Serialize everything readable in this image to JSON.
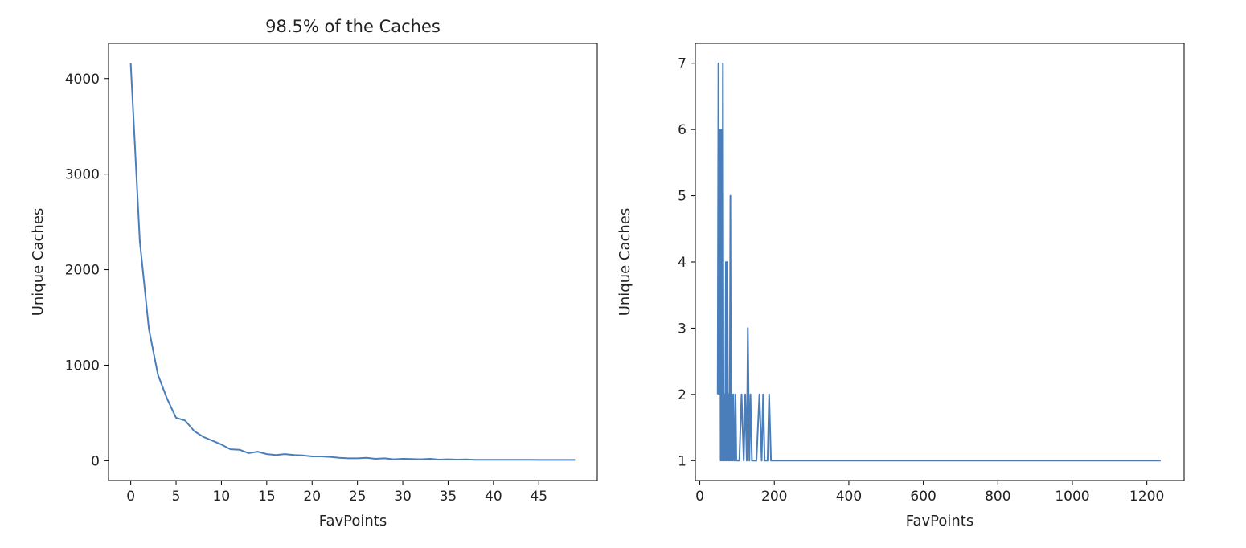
{
  "chart_data": [
    {
      "type": "line",
      "title": "98.5% of the Caches",
      "xlabel": "FavPoints",
      "ylabel": "Unique Caches",
      "xlim": [
        -2.45,
        51.45
      ],
      "ylim": [
        -207,
        4368
      ],
      "xticks": [
        0,
        5,
        10,
        15,
        20,
        25,
        30,
        35,
        40,
        45
      ],
      "yticks": [
        0,
        1000,
        2000,
        3000,
        4000
      ],
      "grid": false,
      "color": "#4a7ebb",
      "series": [
        {
          "x": [
            0,
            1,
            2,
            3,
            4,
            5,
            6,
            7,
            8,
            9,
            10,
            11,
            12,
            13,
            14,
            15,
            16,
            17,
            18,
            19,
            20,
            21,
            22,
            23,
            24,
            25,
            26,
            27,
            28,
            29,
            30,
            31,
            32,
            33,
            34,
            35,
            36,
            37,
            38,
            39,
            40,
            41,
            42,
            43,
            44,
            45,
            46,
            47,
            48,
            49
          ],
          "values": [
            4160,
            2300,
            1380,
            900,
            650,
            450,
            420,
            310,
            250,
            210,
            170,
            120,
            115,
            80,
            95,
            70,
            60,
            70,
            60,
            55,
            45,
            45,
            40,
            30,
            25,
            25,
            30,
            20,
            25,
            15,
            20,
            18,
            15,
            20,
            12,
            15,
            12,
            14,
            10,
            10,
            10,
            10,
            10,
            10,
            10,
            8,
            8,
            8,
            8,
            8
          ]
        }
      ]
    },
    {
      "type": "line",
      "title": "",
      "xlabel": "FavPoints",
      "ylabel": "Unique Caches",
      "xlim": [
        -12,
        1300
      ],
      "ylim": [
        0.7,
        7.3
      ],
      "xticks": [
        0,
        200,
        400,
        600,
        800,
        1000,
        1200
      ],
      "yticks": [
        1,
        2,
        3,
        4,
        5,
        6,
        7
      ],
      "grid": false,
      "color": "#4a7ebb",
      "series": [
        {
          "x": [
            48,
            50,
            52,
            54,
            56,
            58,
            60,
            62,
            64,
            66,
            68,
            70,
            72,
            74,
            76,
            78,
            80,
            82,
            84,
            86,
            88,
            90,
            92,
            94,
            96,
            98,
            100,
            103,
            106,
            112,
            118,
            122,
            126,
            129,
            133,
            136,
            140,
            146,
            152,
            160,
            166,
            170,
            174,
            178,
            182,
            186,
            191,
            196,
            200,
            250,
            400,
            600,
            800,
            1000,
            1200,
            1237
          ],
          "values": [
            2,
            7,
            2,
            6,
            1,
            6,
            1,
            7,
            1,
            2,
            1,
            4,
            1,
            4,
            1,
            2,
            1,
            5,
            1,
            2,
            1,
            2,
            1,
            1,
            2,
            1,
            1,
            1,
            1,
            2,
            1,
            2,
            1,
            3,
            1,
            2,
            1,
            1,
            1,
            2,
            1,
            2,
            1,
            1,
            1,
            2,
            1,
            1,
            1,
            1,
            1,
            1,
            1,
            1,
            1,
            1
          ]
        }
      ]
    }
  ]
}
